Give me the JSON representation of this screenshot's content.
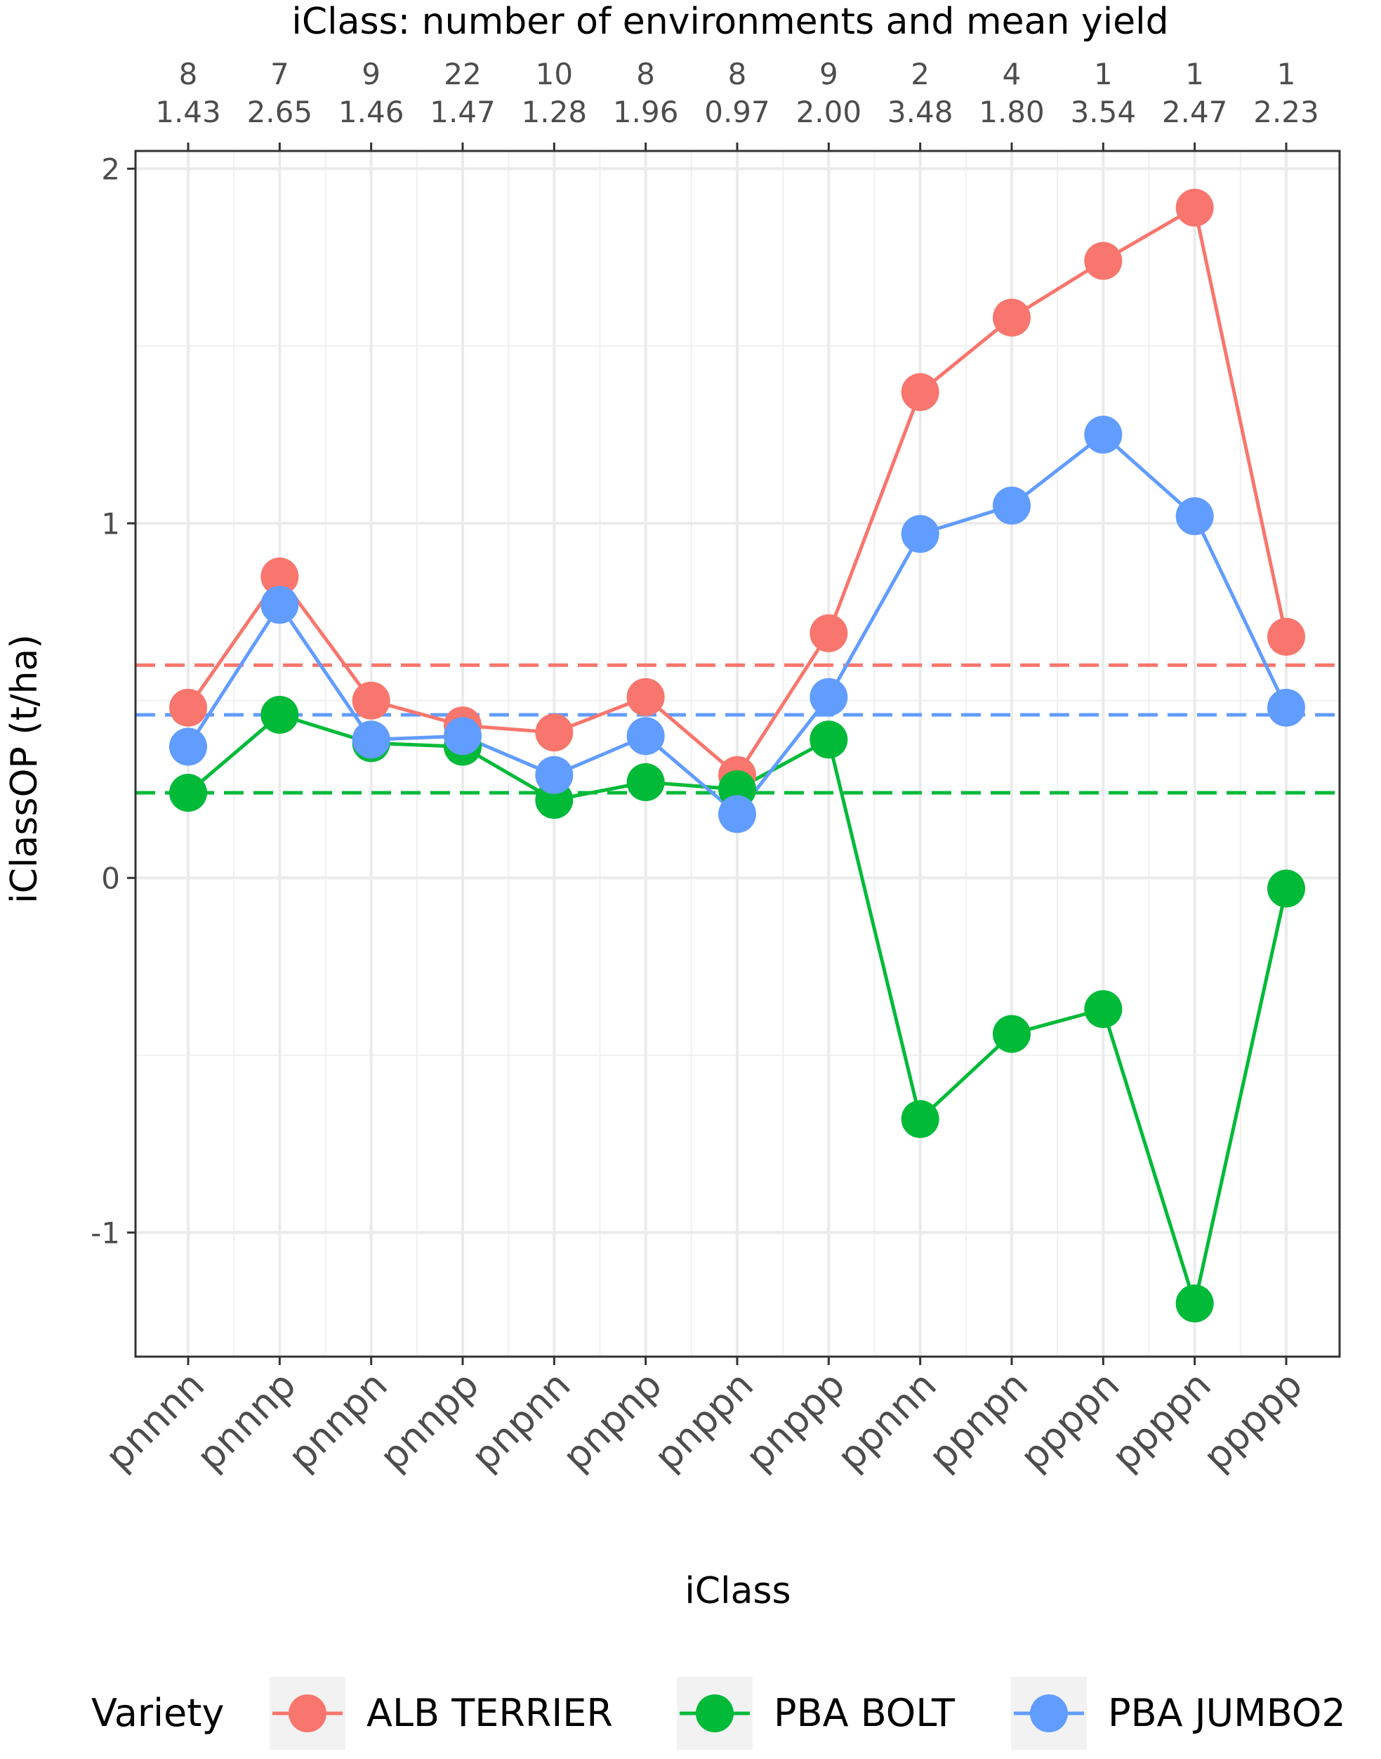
{
  "chart_data": {
    "type": "line",
    "title": "",
    "top_axis_title": "iClass: number of environments and mean yield",
    "xlabel": "iClass",
    "ylabel": "iClassOP (t/ha)",
    "ylim": [
      -1.35,
      2.05
    ],
    "yticks": [
      -1,
      0,
      1,
      2
    ],
    "yticks_labels": [
      "-1",
      "0",
      "1",
      "2"
    ],
    "grid": true,
    "legend_position": "bottom",
    "legend_title": "Variety",
    "categories": [
      "pnnnn",
      "pnnnp",
      "pnnpn",
      "pnnpp",
      "pnpnn",
      "pnpnp",
      "pnppn",
      "pnppp",
      "ppnnn",
      "ppnpn",
      "ppppn",
      "ppppn",
      "ppppp"
    ],
    "top_labels_count": [
      "8",
      "7",
      "9",
      "22",
      "10",
      "8",
      "8",
      "9",
      "2",
      "4",
      "1",
      "1",
      "1"
    ],
    "top_labels_mean": [
      "1.43",
      "2.65",
      "1.46",
      "1.47",
      "1.28",
      "1.96",
      "0.97",
      "2.00",
      "3.48",
      "1.80",
      "3.54",
      "2.47",
      "2.23"
    ],
    "series": [
      {
        "name": "ALB TERRIER",
        "color": "#F8766D",
        "values": [
          0.48,
          0.85,
          0.5,
          0.43,
          0.41,
          0.51,
          0.29,
          0.69,
          1.37,
          1.58,
          1.74,
          1.89,
          0.68
        ],
        "mean": 0.6
      },
      {
        "name": "PBA BOLT",
        "color": "#00BA38",
        "values": [
          0.24,
          0.46,
          0.38,
          0.37,
          0.22,
          0.27,
          0.25,
          0.39,
          -0.68,
          -0.44,
          -0.37,
          -1.2,
          -0.03
        ],
        "mean": 0.24
      },
      {
        "name": "PBA JUMBO2",
        "color": "#619CFF",
        "values": [
          0.37,
          0.77,
          0.39,
          0.4,
          0.29,
          0.4,
          0.18,
          0.51,
          0.97,
          1.05,
          1.25,
          1.02,
          0.48
        ],
        "mean": 0.46
      }
    ]
  }
}
